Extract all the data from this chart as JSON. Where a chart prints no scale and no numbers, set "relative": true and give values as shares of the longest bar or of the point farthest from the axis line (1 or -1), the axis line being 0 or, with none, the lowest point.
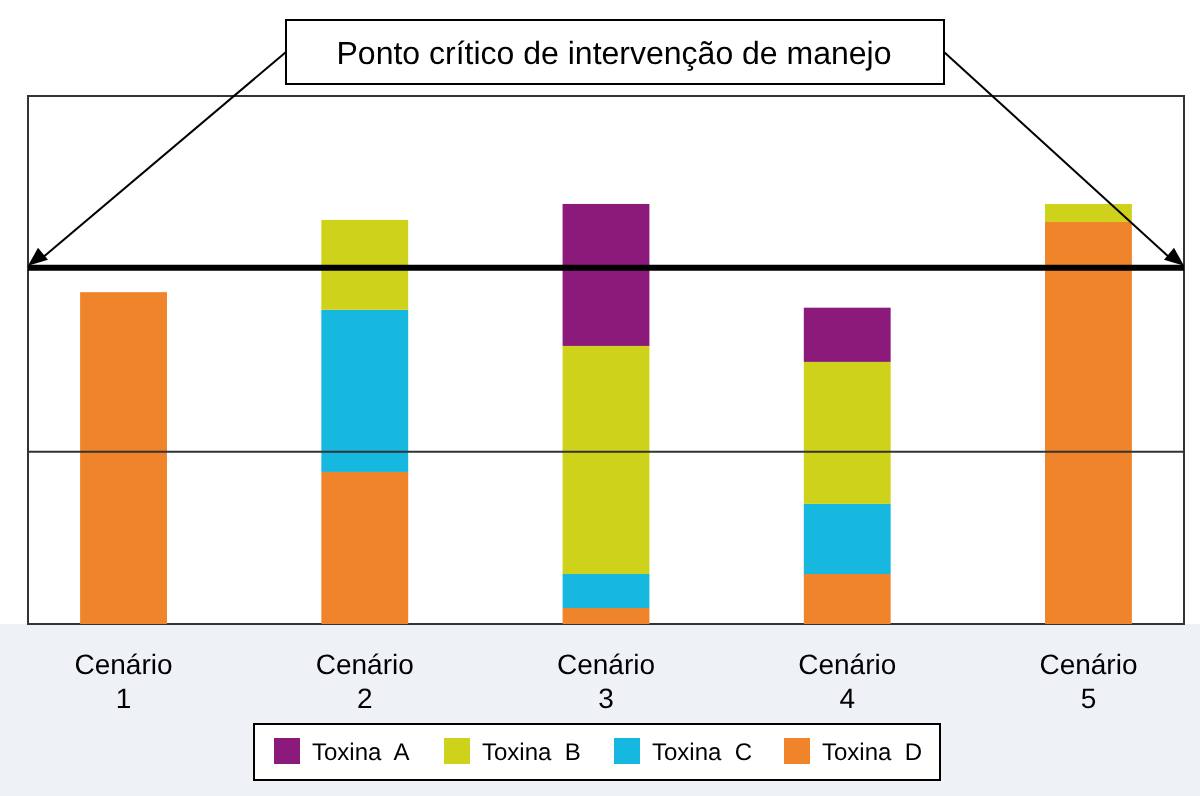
{
  "chart_data": {
    "type": "bar",
    "stacked": true,
    "relative": true,
    "categories": [
      "Cenário 1",
      "Cenário 2",
      "Cenário 3",
      "Cenário 4",
      "Cenário 5"
    ],
    "series": [
      {
        "name": "Toxina  D",
        "color": "#f0842a",
        "values": [
          0.79,
          0.362,
          0.038,
          0.119,
          0.957
        ]
      },
      {
        "name": "Toxina  C",
        "color": "#16b8e0",
        "values": [
          null,
          0.386,
          0.081,
          0.167,
          null
        ]
      },
      {
        "name": "Toxina  B",
        "color": "#cfd21a",
        "values": [
          null,
          0.214,
          0.543,
          0.338,
          0.043
        ]
      },
      {
        "name": "Toxina  A",
        "color": "#8b1a7a",
        "values": [
          null,
          null,
          0.338,
          0.129,
          null
        ]
      }
    ],
    "annotations": [
      "Ponto crítico de intervenção de manejo"
    ],
    "ref_lines": [
      {
        "axis": "y",
        "value": 0.848,
        "color": "#000000"
      },
      {
        "axis": "y",
        "value": 0.41,
        "color": "#333333"
      }
    ],
    "legend": "bottom"
  }
}
